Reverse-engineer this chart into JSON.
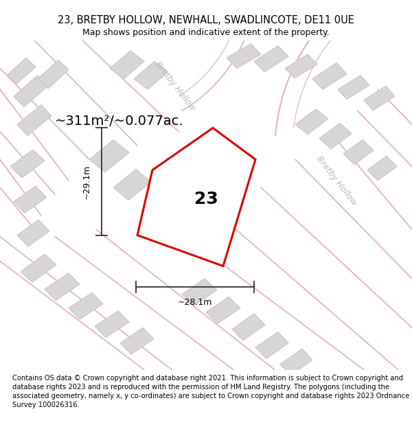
{
  "title": "23, BRETBY HOLLOW, NEWHALL, SWADLINCOTE, DE11 0UE",
  "subtitle": "Map shows position and indicative extent of the property.",
  "footer": "Contains OS data © Crown copyright and database right 2021. This information is subject to Crown copyright and database rights 2023 and is reproduced with the permission of HM Land Registry. The polygons (including the associated geometry, namely x, y co-ordinates) are subject to Crown copyright and database rights 2023 Ordnance Survey 100026316.",
  "area_label": "~311m²/~0.077ac.",
  "number_label": "23",
  "dim_width": "~28.1m",
  "dim_height": "~29.1m",
  "map_bg": "#f7f3f3",
  "plot_fill": "#ffffff",
  "plot_outline": "#dd0000",
  "road_color": "#e8b4b4",
  "building_fc": "#d8d5d5",
  "building_ec": "#c8c4c4",
  "street_label_color": "#c0b8b8",
  "street_name": "Bretby Hollow",
  "dim_color": "#333333",
  "title_fontsize": 10.5,
  "subtitle_fontsize": 9,
  "footer_fontsize": 7.2,
  "area_fontsize": 14,
  "number_fontsize": 18,
  "dim_fontsize": 9,
  "street_fontsize": 9
}
